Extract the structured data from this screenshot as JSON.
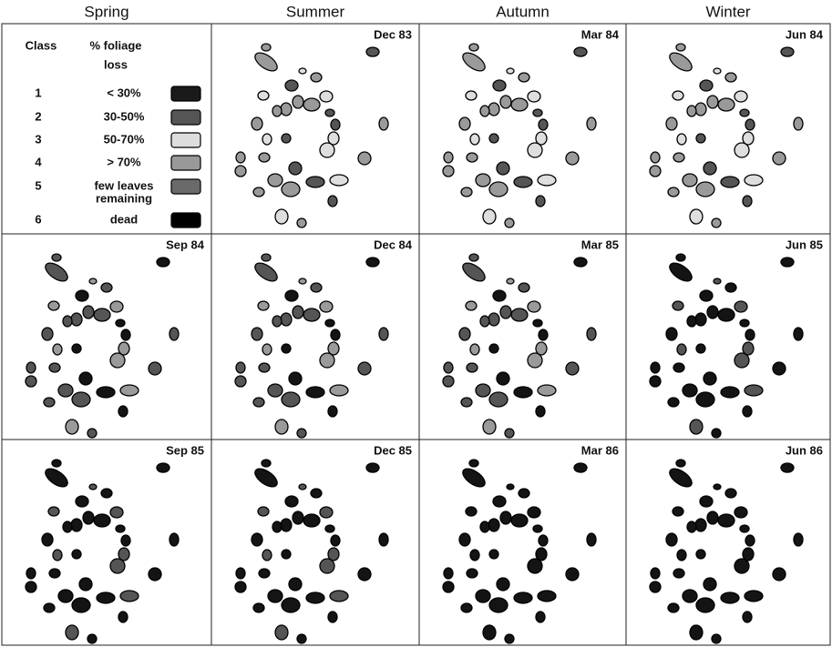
{
  "columns": [
    "Spring",
    "Summer",
    "Autumn",
    "Winter"
  ],
  "legend": {
    "class_header": "Class",
    "loss_header": [
      "% foliage",
      "loss"
    ],
    "rows": [
      {
        "class": "1",
        "label": [
          "< 30%"
        ],
        "color": "#1a1a1a"
      },
      {
        "class": "2",
        "label": [
          "30-50%"
        ],
        "color": "#555555"
      },
      {
        "class": "3",
        "label": [
          "50-70%"
        ],
        "color": "#dddddd"
      },
      {
        "class": "4",
        "label": [
          "> 70%"
        ],
        "color": "#999999"
      },
      {
        "class": "5",
        "label": [
          "few leaves",
          "remaining"
        ],
        "color": "#6a6a6a"
      },
      {
        "class": "6",
        "label": [
          "dead"
        ],
        "color": "#000000"
      }
    ]
  },
  "panels": [
    "Dec 83",
    "Mar 84",
    "Jun 84",
    "Sep 84",
    "Dec 84",
    "Mar 85",
    "Jun 85",
    "Sep 85",
    "Dec 85",
    "Mar 86",
    "Jun 86"
  ]
}
